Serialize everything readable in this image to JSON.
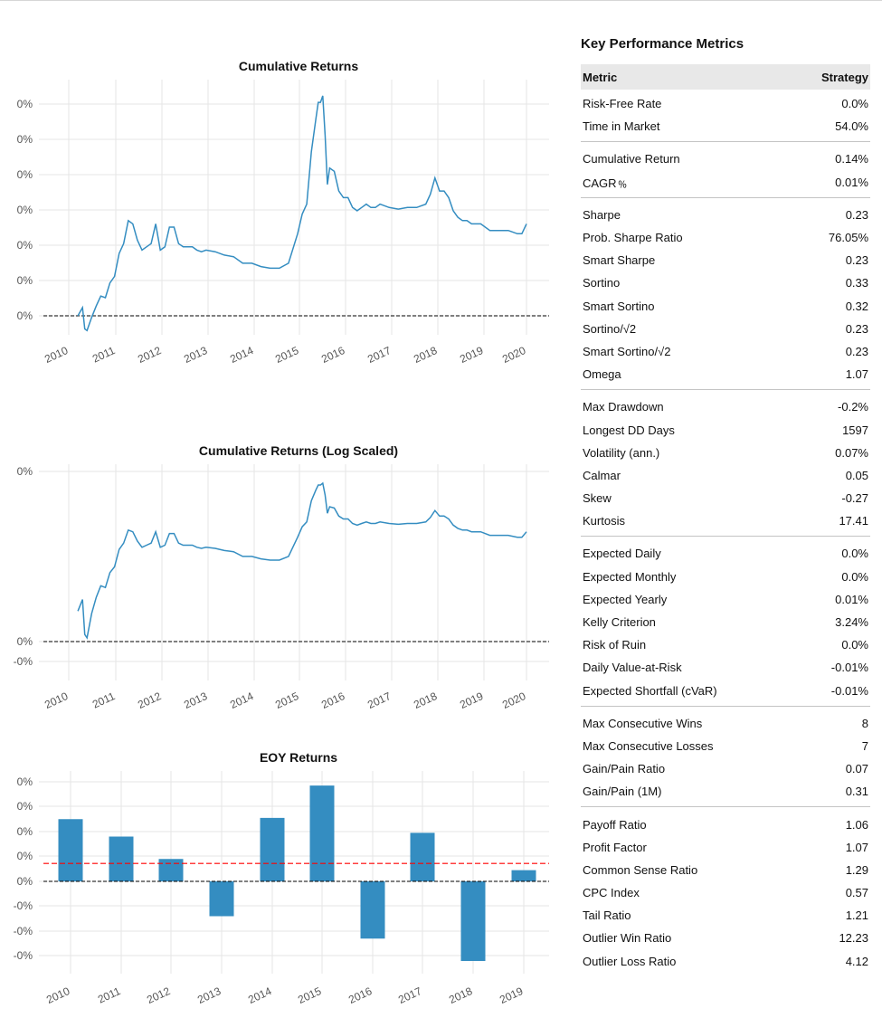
{
  "charts": [
    {
      "type": "line",
      "title": "Cumulative Returns",
      "x_tick_labels": [
        "2010",
        "2011",
        "2012",
        "2013",
        "2014",
        "2015",
        "2016",
        "2017",
        "2018",
        "2019",
        "2020"
      ],
      "y_tick_labels": [
        "0%",
        "0%",
        "0%",
        "0%",
        "0%",
        "0%",
        "0%"
      ],
      "color": "#348dc1",
      "baseline_color": "#000000",
      "grid": true
    },
    {
      "type": "line",
      "title": "Cumulative Returns (Log Scaled)",
      "scale": "log",
      "x_tick_labels": [
        "2010",
        "2011",
        "2012",
        "2013",
        "2014",
        "2015",
        "2016",
        "2017",
        "2018",
        "2019",
        "2020"
      ],
      "y_tick_labels": [
        "0%",
        "0%",
        "-0%"
      ],
      "color": "#348dc1",
      "baseline_color": "#000000",
      "grid": true
    },
    {
      "type": "bar",
      "title": "EOY Returns",
      "categories": [
        "2010",
        "2011",
        "2012",
        "2013",
        "2014",
        "2015",
        "2016",
        "2017",
        "2018",
        "2019"
      ],
      "y_tick_labels": [
        "0%",
        "0%",
        "0%",
        "0%",
        "0%",
        "-0%",
        "-0%",
        "-0%"
      ],
      "color": "#348dc1",
      "mean_line_color": "#ff0000",
      "baseline_color": "#000000",
      "grid": true
    }
  ],
  "chart_data": [
    {
      "type": "line",
      "title": "Cumulative Returns",
      "x": [
        2010.2,
        2010.3,
        2010.35,
        2010.4,
        2010.5,
        2010.6,
        2010.7,
        2010.8,
        2010.9,
        2011.0,
        2011.1,
        2011.2,
        2011.3,
        2011.4,
        2011.5,
        2011.6,
        2011.7,
        2011.8,
        2011.9,
        2012.0,
        2012.1,
        2012.2,
        2012.3,
        2012.4,
        2012.5,
        2012.6,
        2012.7,
        2012.8,
        2012.9,
        2013.0,
        2013.2,
        2013.4,
        2013.6,
        2013.8,
        2014.0,
        2014.2,
        2014.4,
        2014.6,
        2014.8,
        2015.0,
        2015.1,
        2015.2,
        2015.3,
        2015.4,
        2015.45,
        2015.5,
        2015.55,
        2015.6,
        2015.65,
        2015.7,
        2015.8,
        2015.9,
        2016.0,
        2016.1,
        2016.2,
        2016.3,
        2016.4,
        2016.5,
        2016.6,
        2016.7,
        2016.8,
        2017.0,
        2017.2,
        2017.4,
        2017.6,
        2017.8,
        2017.9,
        2018.0,
        2018.1,
        2018.2,
        2018.3,
        2018.4,
        2018.5,
        2018.6,
        2018.7,
        2018.8,
        2018.9,
        2019.0,
        2019.2,
        2019.4,
        2019.6,
        2019.8,
        2019.9,
        2020.0
      ],
      "y": [
        0.0,
        0.25,
        -0.4,
        -0.45,
        -0.05,
        0.3,
        0.6,
        0.55,
        1.0,
        1.2,
        1.9,
        2.2,
        2.9,
        2.8,
        2.3,
        2.0,
        2.1,
        2.2,
        2.8,
        2.0,
        2.1,
        2.7,
        2.7,
        2.2,
        2.1,
        2.1,
        2.1,
        2.0,
        1.95,
        2.0,
        1.95,
        1.85,
        1.8,
        1.6,
        1.6,
        1.5,
        1.45,
        1.45,
        1.6,
        2.5,
        3.1,
        3.4,
        5.0,
        6.0,
        6.5,
        6.5,
        6.7,
        5.5,
        4.0,
        4.5,
        4.4,
        3.8,
        3.6,
        3.6,
        3.3,
        3.2,
        3.3,
        3.4,
        3.3,
        3.3,
        3.4,
        3.3,
        3.25,
        3.3,
        3.3,
        3.4,
        3.7,
        4.2,
        3.8,
        3.8,
        3.6,
        3.2,
        3.0,
        2.9,
        2.9,
        2.8,
        2.8,
        2.8,
        2.6,
        2.6,
        2.6,
        2.5,
        2.5,
        2.8
      ],
      "xlabel": "",
      "ylabel": "",
      "y_ticks": [
        "0%",
        "0%",
        "0%",
        "0%",
        "0%",
        "0%",
        "0%"
      ]
    },
    {
      "type": "line",
      "title": "Cumulative Returns (Log Scaled)",
      "scale": "log",
      "x": [
        2010.2,
        2010.3,
        2010.35,
        2010.4,
        2010.5,
        2010.6,
        2010.7,
        2010.8,
        2010.9,
        2011.0,
        2011.1,
        2011.2,
        2011.3,
        2011.4,
        2011.5,
        2011.6,
        2011.7,
        2011.8,
        2011.9,
        2012.0,
        2012.1,
        2012.2,
        2012.3,
        2012.4,
        2012.5,
        2012.6,
        2012.7,
        2012.8,
        2012.9,
        2013.0,
        2013.2,
        2013.4,
        2013.6,
        2013.8,
        2014.0,
        2014.2,
        2014.4,
        2014.6,
        2014.8,
        2015.0,
        2015.1,
        2015.2,
        2015.3,
        2015.4,
        2015.45,
        2015.5,
        2015.55,
        2015.6,
        2015.65,
        2015.7,
        2015.8,
        2015.9,
        2016.0,
        2016.1,
        2016.2,
        2016.3,
        2016.4,
        2016.5,
        2016.6,
        2016.7,
        2016.8,
        2017.0,
        2017.2,
        2017.4,
        2017.6,
        2017.8,
        2017.9,
        2018.0,
        2018.1,
        2018.2,
        2018.3,
        2018.4,
        2018.5,
        2018.6,
        2018.7,
        2018.8,
        2018.9,
        2019.0,
        2019.2,
        2019.4,
        2019.6,
        2019.8,
        2019.9,
        2020.0
      ],
      "y": [
        0.0,
        0.25,
        -0.4,
        -0.45,
        -0.05,
        0.3,
        0.6,
        0.55,
        1.0,
        1.2,
        1.9,
        2.2,
        2.9,
        2.8,
        2.3,
        2.0,
        2.1,
        2.2,
        2.8,
        2.0,
        2.1,
        2.7,
        2.7,
        2.2,
        2.1,
        2.1,
        2.1,
        2.0,
        1.95,
        2.0,
        1.95,
        1.85,
        1.8,
        1.6,
        1.6,
        1.5,
        1.45,
        1.45,
        1.6,
        2.5,
        3.1,
        3.4,
        5.0,
        6.0,
        6.5,
        6.5,
        6.7,
        5.5,
        4.0,
        4.5,
        4.4,
        3.8,
        3.6,
        3.6,
        3.3,
        3.2,
        3.3,
        3.4,
        3.3,
        3.3,
        3.4,
        3.3,
        3.25,
        3.3,
        3.3,
        3.4,
        3.7,
        4.2,
        3.8,
        3.8,
        3.6,
        3.2,
        3.0,
        2.9,
        2.9,
        2.8,
        2.8,
        2.8,
        2.6,
        2.6,
        2.6,
        2.5,
        2.5,
        2.8
      ],
      "xlabel": "",
      "ylabel": "",
      "y_ticks": [
        "0%",
        "0%",
        "-0%"
      ]
    },
    {
      "type": "bar",
      "title": "EOY Returns",
      "categories": [
        "2010",
        "2011",
        "2012",
        "2013",
        "2014",
        "2015",
        "2016",
        "2017",
        "2018",
        "2019"
      ],
      "values": [
        2.5,
        1.8,
        0.9,
        -1.4,
        2.55,
        3.85,
        -2.3,
        1.95,
        -3.2,
        0.45
      ],
      "mean": 0.72,
      "xlabel": "",
      "ylabel": "",
      "y_ticks": [
        "0%",
        "0%",
        "0%",
        "0%",
        "0%",
        "-0%",
        "-0%",
        "-0%"
      ]
    }
  ],
  "metrics": {
    "title": "Key Performance Metrics",
    "header": {
      "metric": "Metric",
      "strategy": "Strategy"
    },
    "groups": [
      [
        [
          "Risk-Free Rate",
          "0.0%"
        ],
        [
          "Time in Market",
          "54.0%"
        ]
      ],
      [
        [
          "Cumulative Return",
          "0.14%"
        ],
        [
          "CAGR﹪",
          "0.01%"
        ]
      ],
      [
        [
          "Sharpe",
          "0.23"
        ],
        [
          "Prob. Sharpe Ratio",
          "76.05%"
        ],
        [
          "Smart Sharpe",
          "0.23"
        ],
        [
          "Sortino",
          "0.33"
        ],
        [
          "Smart Sortino",
          "0.32"
        ],
        [
          "Sortino/√2",
          "0.23"
        ],
        [
          "Smart Sortino/√2",
          "0.23"
        ],
        [
          "Omega",
          "1.07"
        ]
      ],
      [
        [
          "Max Drawdown",
          "-0.2%"
        ],
        [
          "Longest DD Days",
          "1597"
        ],
        [
          "Volatility (ann.)",
          "0.07%"
        ],
        [
          "Calmar",
          "0.05"
        ],
        [
          "Skew",
          "-0.27"
        ],
        [
          "Kurtosis",
          "17.41"
        ]
      ],
      [
        [
          "Expected Daily",
          "0.0%"
        ],
        [
          "Expected Monthly",
          "0.0%"
        ],
        [
          "Expected Yearly",
          "0.01%"
        ],
        [
          "Kelly Criterion",
          "3.24%"
        ],
        [
          "Risk of Ruin",
          "0.0%"
        ],
        [
          "Daily Value-at-Risk",
          "-0.01%"
        ],
        [
          "Expected Shortfall (cVaR)",
          "-0.01%"
        ]
      ],
      [
        [
          "Max Consecutive Wins",
          "8"
        ],
        [
          "Max Consecutive Losses",
          "7"
        ],
        [
          "Gain/Pain Ratio",
          "0.07"
        ],
        [
          "Gain/Pain (1M)",
          "0.31"
        ]
      ],
      [
        [
          "Payoff Ratio",
          "1.06"
        ],
        [
          "Profit Factor",
          "1.07"
        ],
        [
          "Common Sense Ratio",
          "1.29"
        ],
        [
          "CPC Index",
          "0.57"
        ],
        [
          "Tail Ratio",
          "1.21"
        ],
        [
          "Outlier Win Ratio",
          "12.23"
        ],
        [
          "Outlier Loss Ratio",
          "4.12"
        ]
      ]
    ]
  }
}
